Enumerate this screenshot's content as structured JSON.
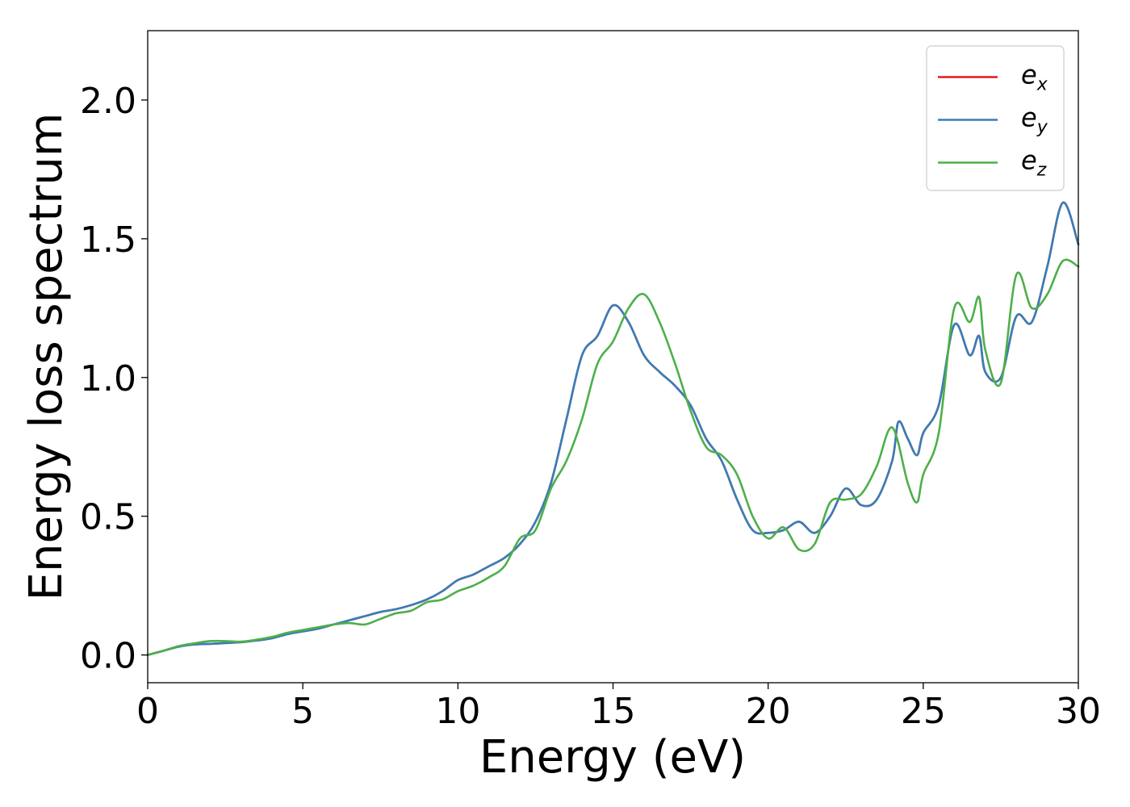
{
  "chart_data": {
    "type": "line",
    "title": "",
    "xlabel": "Energy (eV)",
    "ylabel": "Energy loss spectrum",
    "xlim": [
      0,
      30
    ],
    "ylim": [
      -0.1,
      2.25
    ],
    "xticks": [
      0,
      5,
      10,
      15,
      20,
      25,
      30
    ],
    "xtick_labels": [
      "0",
      "5",
      "10",
      "15",
      "20",
      "25",
      "30"
    ],
    "yticks": [
      0.0,
      0.5,
      1.0,
      1.5,
      2.0
    ],
    "ytick_labels": [
      "0.0",
      "0.5",
      "1.0",
      "1.5",
      "2.0"
    ],
    "grid": false,
    "legend_position": "top-right",
    "series": [
      {
        "name": "e_x",
        "legend_base": "e",
        "legend_sub": "x",
        "color": "#e41a1c",
        "x": [
          0,
          0.5,
          1,
          1.5,
          2,
          2.5,
          3,
          3.5,
          4,
          4.5,
          5,
          5.5,
          6,
          6.5,
          7,
          7.5,
          8,
          8.5,
          9,
          9.5,
          10,
          10.5,
          11,
          11.5,
          12,
          12.5,
          13,
          13.5,
          14,
          14.5,
          15,
          15.5,
          16,
          16.5,
          17,
          17.5,
          18,
          18.5,
          19,
          19.5,
          20,
          20.5,
          21,
          21.5,
          22,
          22.5,
          23,
          23.5,
          24,
          24.2,
          24.5,
          24.8,
          25,
          25.5,
          26,
          26.5,
          26.8,
          27,
          27.5,
          28,
          28.5,
          29,
          29.5,
          30
        ],
        "y": [
          0,
          0.015,
          0.03,
          0.038,
          0.04,
          0.043,
          0.046,
          0.052,
          0.06,
          0.075,
          0.085,
          0.095,
          0.11,
          0.125,
          0.14,
          0.155,
          0.165,
          0.18,
          0.2,
          0.23,
          0.27,
          0.29,
          0.32,
          0.35,
          0.4,
          0.48,
          0.62,
          0.85,
          1.08,
          1.15,
          1.26,
          1.2,
          1.08,
          1.02,
          0.97,
          0.9,
          0.78,
          0.7,
          0.56,
          0.45,
          0.44,
          0.45,
          0.48,
          0.44,
          0.5,
          0.6,
          0.54,
          0.56,
          0.7,
          0.84,
          0.78,
          0.72,
          0.8,
          0.9,
          1.19,
          1.08,
          1.15,
          1.02,
          1.0,
          1.22,
          1.2,
          1.4,
          1.63,
          1.48
        ]
      },
      {
        "name": "e_y",
        "legend_base": "e",
        "legend_sub": "y",
        "color": "#377eb8",
        "x": [
          0,
          0.5,
          1,
          1.5,
          2,
          2.5,
          3,
          3.5,
          4,
          4.5,
          5,
          5.5,
          6,
          6.5,
          7,
          7.5,
          8,
          8.5,
          9,
          9.5,
          10,
          10.5,
          11,
          11.5,
          12,
          12.5,
          13,
          13.5,
          14,
          14.5,
          15,
          15.5,
          16,
          16.5,
          17,
          17.5,
          18,
          18.5,
          19,
          19.5,
          20,
          20.5,
          21,
          21.5,
          22,
          22.5,
          23,
          23.5,
          24,
          24.2,
          24.5,
          24.8,
          25,
          25.5,
          26,
          26.5,
          26.8,
          27,
          27.5,
          28,
          28.5,
          29,
          29.5,
          30
        ],
        "y": [
          0,
          0.015,
          0.03,
          0.038,
          0.04,
          0.043,
          0.046,
          0.052,
          0.06,
          0.075,
          0.085,
          0.095,
          0.11,
          0.125,
          0.14,
          0.155,
          0.165,
          0.18,
          0.2,
          0.23,
          0.27,
          0.29,
          0.32,
          0.35,
          0.4,
          0.48,
          0.62,
          0.85,
          1.08,
          1.15,
          1.26,
          1.2,
          1.08,
          1.02,
          0.97,
          0.9,
          0.78,
          0.7,
          0.56,
          0.45,
          0.44,
          0.45,
          0.48,
          0.44,
          0.5,
          0.6,
          0.54,
          0.56,
          0.7,
          0.84,
          0.78,
          0.72,
          0.8,
          0.9,
          1.19,
          1.08,
          1.15,
          1.02,
          1.0,
          1.22,
          1.2,
          1.4,
          1.63,
          1.48
        ]
      },
      {
        "name": "e_z",
        "legend_base": "e",
        "legend_sub": "z",
        "color": "#4daf4a",
        "x": [
          0,
          0.5,
          1,
          1.5,
          2,
          2.5,
          3,
          3.5,
          4,
          4.5,
          5,
          5.5,
          6,
          6.5,
          7,
          7.5,
          8,
          8.5,
          9,
          9.5,
          10,
          10.5,
          11,
          11.5,
          12,
          12.5,
          13,
          13.5,
          14,
          14.5,
          15,
          15.5,
          16,
          16.5,
          17,
          17.5,
          18,
          18.5,
          19,
          19.5,
          20,
          20.5,
          21,
          21.5,
          22,
          22.5,
          23,
          23.5,
          24,
          24.5,
          24.8,
          25,
          25.5,
          26,
          26.5,
          26.8,
          27,
          27.5,
          28,
          28.5,
          29,
          29.5,
          30
        ],
        "y": [
          0,
          0.015,
          0.032,
          0.042,
          0.05,
          0.05,
          0.048,
          0.055,
          0.065,
          0.08,
          0.09,
          0.1,
          0.11,
          0.115,
          0.11,
          0.13,
          0.15,
          0.16,
          0.19,
          0.2,
          0.23,
          0.25,
          0.28,
          0.32,
          0.42,
          0.45,
          0.6,
          0.7,
          0.85,
          1.05,
          1.13,
          1.25,
          1.3,
          1.2,
          1.05,
          0.88,
          0.75,
          0.72,
          0.65,
          0.5,
          0.42,
          0.46,
          0.38,
          0.4,
          0.55,
          0.56,
          0.58,
          0.68,
          0.82,
          0.62,
          0.55,
          0.65,
          0.8,
          1.25,
          1.2,
          1.29,
          1.1,
          0.98,
          1.37,
          1.25,
          1.3,
          1.42,
          1.4
        ]
      }
    ]
  }
}
